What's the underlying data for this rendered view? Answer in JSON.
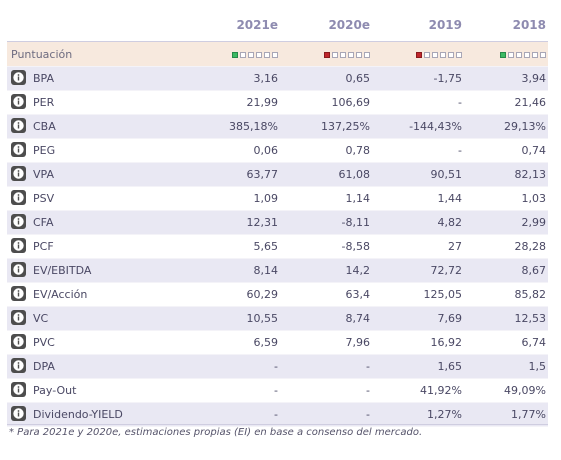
{
  "colors": {
    "header_text": "#8e8bb0",
    "score_row_bg": "#f7e9de",
    "stripe_bg": "#e9e8f3",
    "score_green": "#3cba63",
    "score_red": "#c0262c",
    "info_icon_bg": "#4d4d4d"
  },
  "header": {
    "periods": [
      "2021e",
      "2020e",
      "2019",
      "2018"
    ]
  },
  "score_row": {
    "label": "Puntuación",
    "icons": [
      "score-green-icon",
      "score-red-icon",
      "score-red-icon",
      "score-green-icon"
    ],
    "scores": [
      {
        "filled": 1,
        "color": "#3cba63"
      },
      {
        "filled": 1,
        "color": "#c0262c"
      },
      {
        "filled": 1,
        "color": "#c0262c"
      },
      {
        "filled": 1,
        "color": "#3cba63"
      }
    ]
  },
  "info_icon": "info-icon",
  "rows": [
    {
      "label": "BPA",
      "values": [
        "3,16",
        "0,65",
        "-1,75",
        "3,94"
      ]
    },
    {
      "label": "PER",
      "values": [
        "21,99",
        "106,69",
        "-",
        "21,46"
      ]
    },
    {
      "label": "CBA",
      "values": [
        "385,18%",
        "137,25%",
        "-144,43%",
        "29,13%"
      ]
    },
    {
      "label": "PEG",
      "values": [
        "0,06",
        "0,78",
        "-",
        "0,74"
      ]
    },
    {
      "label": "VPA",
      "values": [
        "63,77",
        "61,08",
        "90,51",
        "82,13"
      ]
    },
    {
      "label": "PSV",
      "values": [
        "1,09",
        "1,14",
        "1,44",
        "1,03"
      ]
    },
    {
      "label": "CFA",
      "values": [
        "12,31",
        "-8,11",
        "4,82",
        "2,99"
      ]
    },
    {
      "label": "PCF",
      "values": [
        "5,65",
        "-8,58",
        "27",
        "28,28"
      ]
    },
    {
      "label": "EV/EBITDA",
      "values": [
        "8,14",
        "14,2",
        "72,72",
        "8,67"
      ]
    },
    {
      "label": "EV/Acción",
      "values": [
        "60,29",
        "63,4",
        "125,05",
        "85,82"
      ]
    },
    {
      "label": "VC",
      "values": [
        "10,55",
        "8,74",
        "7,69",
        "12,53"
      ]
    },
    {
      "label": "PVC",
      "values": [
        "6,59",
        "7,96",
        "16,92",
        "6,74"
      ]
    },
    {
      "label": "DPA",
      "values": [
        "-",
        "-",
        "1,65",
        "1,5"
      ]
    },
    {
      "label": "Pay-Out",
      "values": [
        "-",
        "-",
        "41,92%",
        "49,09%"
      ]
    },
    {
      "label": "Dividendo-YIELD",
      "values": [
        "-",
        "-",
        "1,27%",
        "1,77%"
      ]
    }
  ],
  "footnote": "* Para 2021e y 2020e, estimaciones propias (EI) en base a consenso del mercado."
}
